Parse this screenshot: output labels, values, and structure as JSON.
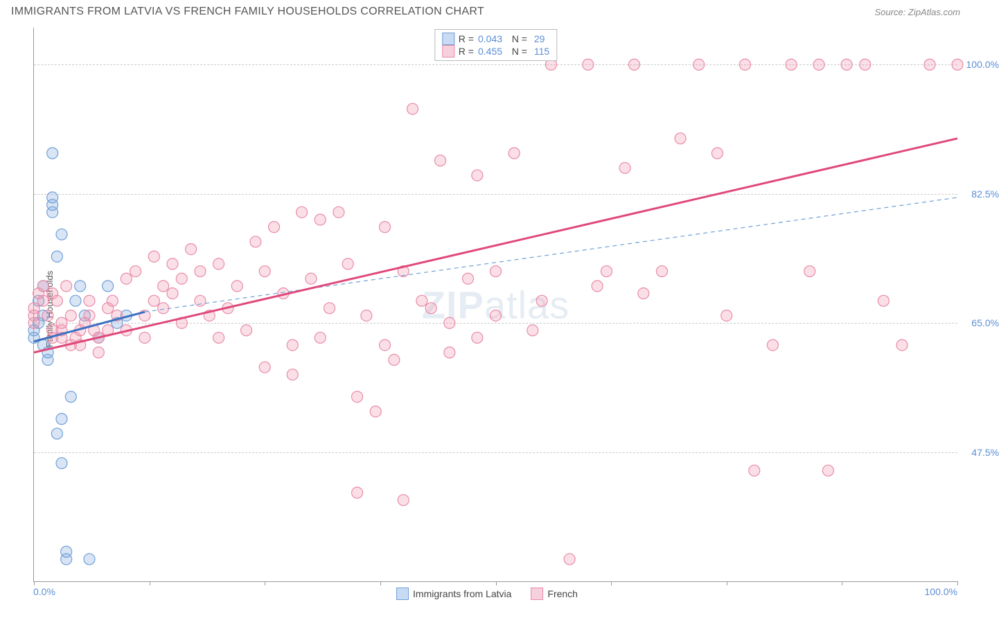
{
  "title": "IMMIGRANTS FROM LATVIA VS FRENCH FAMILY HOUSEHOLDS CORRELATION CHART",
  "source": "Source: ZipAtlas.com",
  "watermark": "ZIPatlas",
  "ylabel": "Family Households",
  "chart": {
    "type": "scatter",
    "xlim": [
      0,
      100
    ],
    "ylim": [
      30,
      105
    ],
    "yticks": [
      47.5,
      65.0,
      82.5,
      100.0
    ],
    "ytick_labels": [
      "47.5%",
      "65.0%",
      "82.5%",
      "100.0%"
    ],
    "xtick_left": "0.0%",
    "xtick_right": "100.0%",
    "xaxis_tickmarks": [
      0,
      12.5,
      25,
      37.5,
      50,
      62.5,
      75,
      87.5,
      100
    ],
    "grid_color": "#cccccc",
    "axis_color": "#999999",
    "background_color": "#ffffff",
    "marker_radius": 8,
    "marker_stroke_width": 1.2,
    "series": [
      {
        "name": "Immigrants from Latvia",
        "label": "Immigrants from Latvia",
        "fill_color": "rgba(120,160,220,0.28)",
        "stroke_color": "#6f9fd8",
        "swatch_fill": "#c8dbf2",
        "swatch_border": "#6f9fd8",
        "R": "0.043",
        "N": "29",
        "trend": {
          "x1": 0,
          "y1": 62.5,
          "x2": 12,
          "y2": 66.5,
          "solid_color": "#3d6fc0",
          "solid_width": 3,
          "dash_x2": 100,
          "dash_y2": 82,
          "dash_color": "#6f9fd8",
          "dash_pattern": "6,5",
          "dash_width": 1.2
        },
        "points": [
          [
            0,
            64
          ],
          [
            0,
            63
          ],
          [
            0.5,
            68
          ],
          [
            0.5,
            65
          ],
          [
            1,
            70
          ],
          [
            1,
            66
          ],
          [
            1,
            62
          ],
          [
            1.5,
            60
          ],
          [
            1.5,
            61
          ],
          [
            2,
            80
          ],
          [
            2,
            81
          ],
          [
            2,
            82
          ],
          [
            2,
            88
          ],
          [
            2.5,
            74
          ],
          [
            2.5,
            50
          ],
          [
            3,
            52
          ],
          [
            3,
            77
          ],
          [
            3,
            46
          ],
          [
            3.5,
            34
          ],
          [
            3.5,
            33
          ],
          [
            4,
            55
          ],
          [
            4.5,
            68
          ],
          [
            5,
            70
          ],
          [
            5.5,
            66
          ],
          [
            6,
            33
          ],
          [
            7,
            63
          ],
          [
            8,
            70
          ],
          [
            9,
            65
          ],
          [
            10,
            66
          ]
        ]
      },
      {
        "name": "French",
        "label": "French",
        "fill_color": "rgba(240,140,170,0.28)",
        "stroke_color": "#e88ba8",
        "swatch_fill": "#f7d0dd",
        "swatch_border": "#e88ba8",
        "R": "0.455",
        "N": "115",
        "trend": {
          "x1": 0,
          "y1": 61,
          "x2": 100,
          "y2": 90,
          "solid_color": "#e0487a",
          "solid_width": 3
        },
        "points": [
          [
            0,
            67
          ],
          [
            0,
            65
          ],
          [
            0,
            66
          ],
          [
            0.5,
            69
          ],
          [
            1,
            68
          ],
          [
            1,
            70
          ],
          [
            1.5,
            66
          ],
          [
            2,
            64
          ],
          [
            2,
            69
          ],
          [
            2,
            63
          ],
          [
            2.5,
            68
          ],
          [
            3,
            65
          ],
          [
            3,
            64
          ],
          [
            3,
            63
          ],
          [
            3.5,
            70
          ],
          [
            4,
            66
          ],
          [
            4,
            62
          ],
          [
            4.5,
            63
          ],
          [
            5,
            64
          ],
          [
            5,
            62
          ],
          [
            5.5,
            65
          ],
          [
            6,
            66
          ],
          [
            6,
            68
          ],
          [
            6.5,
            64
          ],
          [
            7,
            63
          ],
          [
            7,
            61
          ],
          [
            8,
            67
          ],
          [
            8,
            64
          ],
          [
            8.5,
            68
          ],
          [
            9,
            66
          ],
          [
            10,
            71
          ],
          [
            10,
            64
          ],
          [
            11,
            72
          ],
          [
            12,
            66
          ],
          [
            12,
            63
          ],
          [
            13,
            74
          ],
          [
            13,
            68
          ],
          [
            14,
            70
          ],
          [
            14,
            67
          ],
          [
            15,
            73
          ],
          [
            15,
            69
          ],
          [
            16,
            71
          ],
          [
            16,
            65
          ],
          [
            17,
            75
          ],
          [
            18,
            72
          ],
          [
            18,
            68
          ],
          [
            19,
            66
          ],
          [
            20,
            73
          ],
          [
            20,
            63
          ],
          [
            21,
            67
          ],
          [
            22,
            70
          ],
          [
            23,
            64
          ],
          [
            24,
            76
          ],
          [
            25,
            72
          ],
          [
            25,
            59
          ],
          [
            26,
            78
          ],
          [
            27,
            69
          ],
          [
            28,
            58
          ],
          [
            28,
            62
          ],
          [
            29,
            80
          ],
          [
            30,
            71
          ],
          [
            31,
            79
          ],
          [
            31,
            63
          ],
          [
            32,
            67
          ],
          [
            33,
            80
          ],
          [
            34,
            73
          ],
          [
            35,
            42
          ],
          [
            35,
            55
          ],
          [
            36,
            66
          ],
          [
            37,
            53
          ],
          [
            38,
            78
          ],
          [
            38,
            62
          ],
          [
            39,
            60
          ],
          [
            40,
            41
          ],
          [
            40,
            72
          ],
          [
            41,
            94
          ],
          [
            42,
            68
          ],
          [
            43,
            67
          ],
          [
            44,
            87
          ],
          [
            45,
            65
          ],
          [
            45,
            61
          ],
          [
            47,
            71
          ],
          [
            48,
            85
          ],
          [
            48,
            63
          ],
          [
            50,
            72
          ],
          [
            50,
            66
          ],
          [
            52,
            88
          ],
          [
            54,
            64
          ],
          [
            55,
            68
          ],
          [
            56,
            100
          ],
          [
            58,
            33
          ],
          [
            60,
            100
          ],
          [
            61,
            70
          ],
          [
            62,
            72
          ],
          [
            64,
            86
          ],
          [
            65,
            100
          ],
          [
            66,
            69
          ],
          [
            68,
            72
          ],
          [
            70,
            90
          ],
          [
            72,
            100
          ],
          [
            74,
            88
          ],
          [
            75,
            66
          ],
          [
            77,
            100
          ],
          [
            78,
            45
          ],
          [
            80,
            62
          ],
          [
            82,
            100
          ],
          [
            84,
            72
          ],
          [
            85,
            100
          ],
          [
            86,
            45
          ],
          [
            88,
            100
          ],
          [
            90,
            100
          ],
          [
            92,
            68
          ],
          [
            94,
            62
          ],
          [
            97,
            100
          ],
          [
            100,
            100
          ]
        ]
      }
    ]
  },
  "legend_bottom": [
    {
      "label": "Immigrants from Latvia",
      "swatch_fill": "#c8dbf2",
      "swatch_border": "#6f9fd8"
    },
    {
      "label": "French",
      "swatch_fill": "#f7d0dd",
      "swatch_border": "#e88ba8"
    }
  ]
}
